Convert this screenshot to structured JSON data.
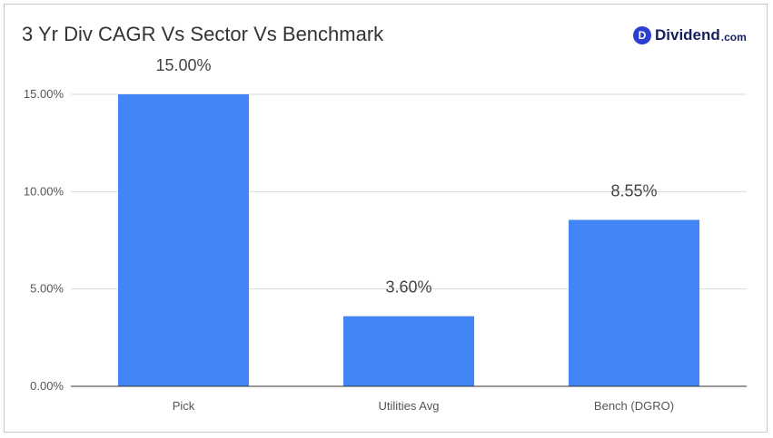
{
  "chart_data": {
    "type": "bar",
    "title": "3 Yr Div CAGR Vs Sector Vs Benchmark",
    "categories": [
      "Pick",
      "Utilities Avg",
      "Bench (DGRO)"
    ],
    "values": [
      15.0,
      3.6,
      8.55
    ],
    "data_labels": [
      "15.00%",
      "3.60%",
      "8.55%"
    ],
    "yticks": [
      0,
      5,
      10,
      15
    ],
    "ytick_labels": [
      "0.00%",
      "5.00%",
      "10.00%",
      "15.00%"
    ],
    "ylim": [
      0,
      15
    ],
    "xlabel": "",
    "ylabel": "",
    "grid": true,
    "legend": "none",
    "bar_color": "#4285f4"
  },
  "brand": {
    "badge_letter": "D",
    "name": "Dividend",
    "tld": ".com",
    "badge_color": "#2b3fd0",
    "text_color": "#16205e"
  }
}
